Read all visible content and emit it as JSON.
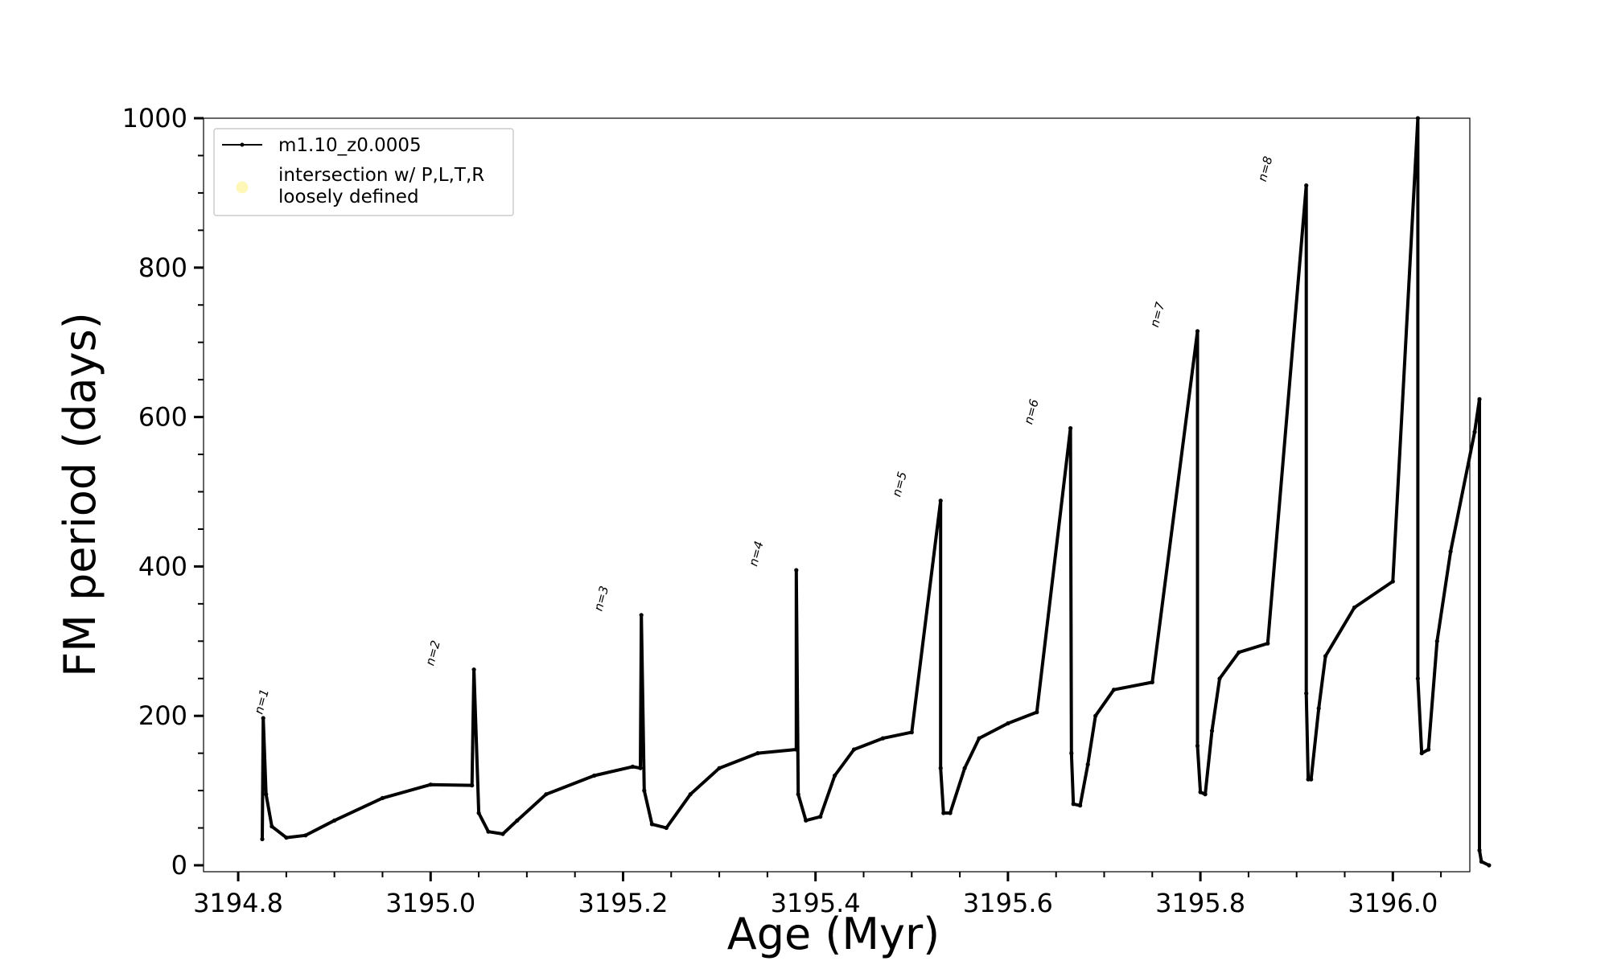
{
  "chart_data": {
    "type": "line",
    "title": "",
    "xlabel": "Age (Myr)",
    "ylabel": "FM period (days)",
    "xlim": [
      3194.764,
      3196.08
    ],
    "ylim": [
      0,
      1000
    ],
    "x_ticks": [
      "3194.8",
      "3195.0",
      "3195.2",
      "3195.4",
      "3195.6",
      "3195.8",
      "3196.0"
    ],
    "y_ticks": [
      "0",
      "200",
      "400",
      "600",
      "800",
      "1000"
    ],
    "grid": false,
    "legend": {
      "placement": "top-left",
      "entries": [
        "m1.10_z0.0005",
        "intersection w/ P,L,T,R",
        "loosely defined"
      ]
    },
    "colors": {
      "series": "#000000",
      "intersection_marker": "#fff6b0"
    },
    "series": [
      {
        "name": "m1.10_z0.0005",
        "x": [
          3194.825,
          3194.826,
          3194.829,
          3194.835,
          3194.85,
          3194.87,
          3194.9,
          3194.95,
          3195.0,
          3195.043,
          3195.045,
          3195.05,
          3195.06,
          3195.075,
          3195.09,
          3195.12,
          3195.17,
          3195.21,
          3195.218,
          3195.219,
          3195.222,
          3195.23,
          3195.245,
          3195.27,
          3195.3,
          3195.34,
          3195.38,
          3195.38,
          3195.382,
          3195.39,
          3195.405,
          3195.42,
          3195.44,
          3195.47,
          3195.5,
          3195.53,
          3195.53,
          3195.533,
          3195.54,
          3195.555,
          3195.57,
          3195.6,
          3195.63,
          3195.665,
          3195.666,
          3195.668,
          3195.675,
          3195.683,
          3195.691,
          3195.71,
          3195.75,
          3195.797,
          3195.797,
          3195.8,
          3195.805,
          3195.812,
          3195.82,
          3195.84,
          3195.87,
          3195.91,
          3195.91,
          3195.912,
          3195.915,
          3195.923,
          3195.93,
          3195.96,
          3196.0,
          3196.026,
          3196.026,
          3196.03,
          3196.037,
          3196.046,
          3196.06,
          3196.085,
          3196.09,
          3196.09,
          3196.092,
          3196.1
        ],
        "y": [
          35,
          197,
          95,
          52,
          37,
          40,
          60,
          90,
          108,
          107,
          262,
          70,
          45,
          42,
          60,
          95,
          120,
          132,
          130,
          335,
          100,
          55,
          50,
          95,
          130,
          150,
          155,
          395,
          95,
          60,
          65,
          120,
          155,
          170,
          178,
          488,
          130,
          70,
          70,
          130,
          170,
          190,
          205,
          585,
          150,
          82,
          80,
          135,
          200,
          235,
          245,
          715,
          160,
          98,
          95,
          180,
          250,
          285,
          297,
          910,
          230,
          115,
          115,
          210,
          280,
          345,
          380,
          1000,
          250,
          150,
          155,
          300,
          420,
          580,
          624,
          20,
          5,
          0
        ]
      }
    ],
    "annotations": [
      "n=1",
      "n=2",
      "n=3",
      "n=4",
      "n=5",
      "n=6",
      "n=7",
      "n=8"
    ],
    "annotation_x": [
      3194.825,
      3195.003,
      3195.178,
      3195.339,
      3195.488,
      3195.625,
      3195.756,
      3195.868
    ],
    "annotation_y": [
      197,
      262,
      335,
      395,
      488,
      585,
      715,
      910
    ]
  }
}
